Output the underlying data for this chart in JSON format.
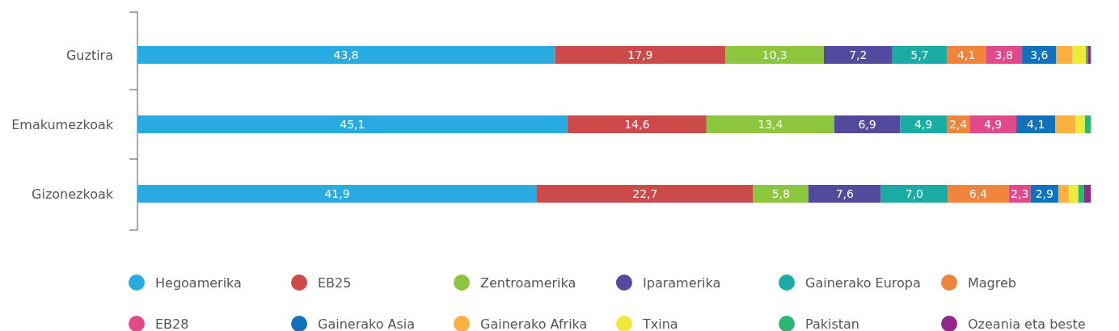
{
  "chart_data": {
    "type": "bar",
    "orientation": "horizontal",
    "stacked": true,
    "categories": [
      "Guztira",
      "Emakumezkoak",
      "Gizonezkoak"
    ],
    "xlim": [
      0,
      100
    ],
    "tick_labels": "y",
    "legend": "bottom",
    "series": [
      {
        "name": "Hegoamerika",
        "color": "#29abe2",
        "values": [
          43.8,
          45.1,
          41.9
        ],
        "value_labels": [
          "43,8",
          "45,1",
          "41,9"
        ]
      },
      {
        "name": "EB25",
        "color": "#cc4a4a",
        "values": [
          17.9,
          14.6,
          22.7
        ],
        "value_labels": [
          "17,9",
          "14,6",
          "22,7"
        ]
      },
      {
        "name": "Zentroamerika",
        "color": "#8cc63f",
        "values": [
          10.3,
          13.4,
          5.8
        ],
        "value_labels": [
          "10,3",
          "13,4",
          "5,8"
        ]
      },
      {
        "name": "Iparamerika",
        "color": "#524a9c",
        "values": [
          7.2,
          6.9,
          7.6
        ],
        "value_labels": [
          "7,2",
          "6,9",
          "7,6"
        ]
      },
      {
        "name": "Gainerako Europa",
        "color": "#1aaca4",
        "values": [
          5.7,
          4.9,
          7.0
        ],
        "value_labels": [
          "5,7",
          "4,9",
          "7,0"
        ]
      },
      {
        "name": "Magreb",
        "color": "#f0843c",
        "values": [
          4.1,
          2.4,
          6.4
        ],
        "value_labels": [
          "4,1",
          "2,4",
          "6,4"
        ]
      },
      {
        "name": "EB28",
        "color": "#e04a8a",
        "values": [
          3.8,
          4.9,
          2.3
        ],
        "value_labels": [
          "3,8",
          "4,9",
          "2,3"
        ]
      },
      {
        "name": "Gainerako Asia",
        "color": "#1271bb",
        "values": [
          3.6,
          4.1,
          2.9
        ],
        "value_labels": [
          "3,6",
          "4,1",
          "2,9"
        ]
      },
      {
        "name": "Gainerako Afrika",
        "color": "#fbb040",
        "values": [
          1.7,
          2.1,
          1.1
        ]
      },
      {
        "name": "Txina",
        "color": "#eeea3c",
        "values": [
          1.4,
          1.0,
          1.0
        ]
      },
      {
        "name": "Pakistan",
        "color": "#2bb673",
        "values": [
          0.2,
          0.6,
          0.6
        ]
      },
      {
        "name": "Ozeania eta beste",
        "color": "#92278f",
        "values": [
          0.3,
          0.0,
          0.7
        ]
      }
    ]
  }
}
